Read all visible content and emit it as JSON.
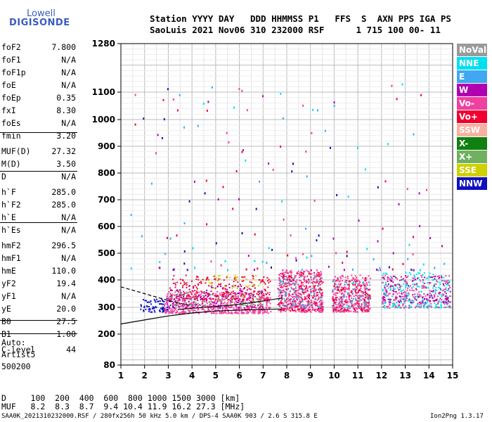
{
  "logo": {
    "top": "Lowell",
    "bottom": "DIGISONDE"
  },
  "header": {
    "line1": "Station YYYY DAY   DDD HHMMSS P1   FFS  S  AXN PPS IGA PS",
    "line2": "SaoLuis 2021 Nov06 310 232000 RSF      1 715 100 00- 11"
  },
  "params": [
    {
      "name": "foF2",
      "value": "7.800"
    },
    {
      "name": "foF1",
      "value": "N/A"
    },
    {
      "name": "foF1p",
      "value": "N/A"
    },
    {
      "name": "foE",
      "value": "N/A"
    },
    {
      "name": "foEp",
      "value": "0.35"
    },
    {
      "name": "fxI",
      "value": "8.30"
    },
    {
      "name": "foEs",
      "value": "N/A"
    },
    {
      "name": "fmin",
      "value": "3.20"
    },
    {
      "name": "MUF(D)",
      "value": "27.32"
    },
    {
      "name": "M(D)",
      "value": "3.50"
    },
    {
      "name": "D",
      "value": "N/A"
    },
    {
      "name": "h`F",
      "value": "285.0"
    },
    {
      "name": "h`F2",
      "value": "285.0"
    },
    {
      "name": "h`E",
      "value": "N/A"
    },
    {
      "name": "h`Es",
      "value": "N/A"
    },
    {
      "name": "hmF2",
      "value": "296.5"
    },
    {
      "name": "hmF1",
      "value": "N/A"
    },
    {
      "name": "hmE",
      "value": "110.0"
    },
    {
      "name": "yF2",
      "value": "19.4"
    },
    {
      "name": "yF1",
      "value": "N/A"
    },
    {
      "name": "yE",
      "value": "20.0"
    },
    {
      "name": "B0",
      "value": "27.5"
    },
    {
      "name": "B1",
      "value": "1.00"
    },
    {
      "name": "C-level",
      "value": "44"
    }
  ],
  "misc": {
    "auto": "Auto:",
    "artist": "Artist5",
    "version": "500200"
  },
  "legend": [
    {
      "label": "NoVal",
      "color": "#9a9a9a"
    },
    {
      "label": "NNE",
      "color": "#00e0f0"
    },
    {
      "label": "E",
      "color": "#40a8f0"
    },
    {
      "label": "W",
      "color": "#b000b0"
    },
    {
      "label": "Vo-",
      "color": "#f040a0"
    },
    {
      "label": "Vo+",
      "color": "#f00030"
    },
    {
      "label": "SSW",
      "color": "#f8b0a0"
    },
    {
      "label": "X-",
      "color": "#108010"
    },
    {
      "label": "X+",
      "color": "#70b060"
    },
    {
      "label": "SSE",
      "color": "#d0d000"
    },
    {
      "label": "NNW",
      "color": "#1010c0"
    }
  ],
  "bottom": {
    "line1": "D     100  200  400  600  800 1000 1500 3000 [km]",
    "line2": "MUF   8.2  8.3  8.7  9.4 10.4 11.9 16.2 27.3 [MHz]"
  },
  "footer": {
    "left": "SAA0K_2021310232000.RSF / 280fx256h 50 kHz 5.0 km / DPS-4 SAA0K 903 / 2.6 S 315.8 E",
    "right": "Ion2Png 1.3.17"
  },
  "chart_data": {
    "type": "scatter",
    "xlim": [
      1,
      15
    ],
    "ylim": [
      80,
      1280
    ],
    "x_ticks": [
      "1",
      "2",
      "3",
      "4",
      "5",
      "6",
      "7",
      "8",
      "9",
      "10",
      "11",
      "12",
      "13",
      "14",
      "15"
    ],
    "y_ticks": [
      "80",
      "200",
      "300",
      "400",
      "500",
      "600",
      "700",
      "800",
      "900",
      "1000",
      "1100",
      "1280"
    ],
    "grid": true,
    "clusters": [
      {
        "x0": 1.8,
        "x1": 3.2,
        "y0": 285,
        "y1": 335,
        "color": "#1010c0",
        "density": 0.8
      },
      {
        "x0": 2.8,
        "x1": 7.3,
        "y0": 280,
        "y1": 360,
        "color": "#f040a0",
        "density": 1.2
      },
      {
        "x0": 3.0,
        "x1": 7.3,
        "y0": 330,
        "y1": 420,
        "color": "#f00030",
        "density": 0.4
      },
      {
        "x0": 3.0,
        "x1": 7.0,
        "y0": 300,
        "y1": 380,
        "color": "#b000b0",
        "density": 0.35
      },
      {
        "x0": 3.0,
        "x1": 7.0,
        "y0": 310,
        "y1": 360,
        "color": "#70b060",
        "density": 0.25
      },
      {
        "x0": 4.5,
        "x1": 7.0,
        "y0": 370,
        "y1": 420,
        "color": "#d0d000",
        "density": 0.2
      },
      {
        "x0": 7.6,
        "x1": 9.5,
        "y0": 285,
        "y1": 440,
        "color": "#f040a0",
        "density": 1.0
      },
      {
        "x0": 7.6,
        "x1": 9.5,
        "y0": 290,
        "y1": 430,
        "color": "#f00030",
        "density": 0.5
      },
      {
        "x0": 7.6,
        "x1": 9.5,
        "y0": 300,
        "y1": 420,
        "color": "#40a8f0",
        "density": 0.3
      },
      {
        "x0": 9.9,
        "x1": 11.5,
        "y0": 285,
        "y1": 420,
        "color": "#f040a0",
        "density": 1.0
      },
      {
        "x0": 9.9,
        "x1": 11.5,
        "y0": 290,
        "y1": 410,
        "color": "#f00030",
        "density": 0.5
      },
      {
        "x0": 9.9,
        "x1": 11.5,
        "y0": 300,
        "y1": 400,
        "color": "#40a8f0",
        "density": 0.3
      },
      {
        "x0": 12.0,
        "x1": 14.9,
        "y0": 300,
        "y1": 430,
        "color": "#00e0f0",
        "density": 0.5
      },
      {
        "x0": 12.0,
        "x1": 14.9,
        "y0": 300,
        "y1": 420,
        "color": "#f040a0",
        "density": 0.4
      },
      {
        "x0": 12.0,
        "x1": 14.9,
        "y0": 320,
        "y1": 420,
        "color": "#b000b0",
        "density": 0.3
      }
    ],
    "traces": [
      {
        "color": "#000000",
        "dash": false,
        "points": [
          [
            1,
            238
          ],
          [
            2,
            253
          ],
          [
            3,
            268
          ],
          [
            4,
            279
          ],
          [
            5,
            286
          ],
          [
            6,
            290
          ],
          [
            7,
            292
          ],
          [
            7.8,
            294
          ]
        ]
      },
      {
        "color": "#000000",
        "dash": false,
        "points": [
          [
            3.4,
            292
          ],
          [
            4.2,
            298
          ],
          [
            5,
            303
          ],
          [
            6,
            311
          ],
          [
            7,
            323
          ],
          [
            7.8,
            334
          ]
        ]
      },
      {
        "color": "#000000",
        "dash": true,
        "points": [
          [
            1,
            375
          ],
          [
            2,
            350
          ],
          [
            3,
            325
          ],
          [
            4,
            305
          ]
        ]
      }
    ]
  }
}
